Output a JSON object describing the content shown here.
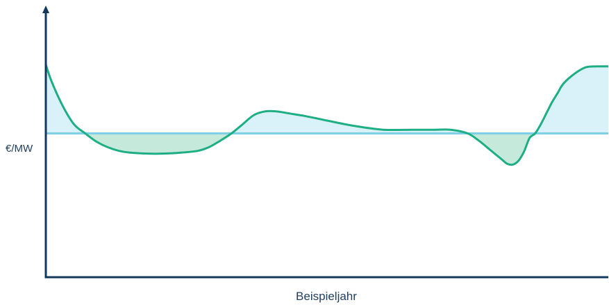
{
  "chart_data": {
    "type": "area",
    "title": "",
    "xlabel": "Beispieljahr",
    "ylabel": "€/MW",
    "xlim": [
      0,
      100
    ],
    "ylim": [
      -100,
      100
    ],
    "reference_value": 0,
    "grid": false,
    "legend": "none",
    "series": [
      {
        "x": [
          0,
          1,
          3,
          5,
          7,
          9,
          11,
          13,
          15,
          18,
          21,
          24,
          27,
          29,
          31,
          33,
          35,
          37,
          39,
          41,
          43,
          46,
          50,
          55,
          60,
          65,
          69,
          72,
          75,
          77,
          79,
          81,
          82,
          83,
          84,
          85,
          86,
          87,
          88,
          89,
          90,
          91,
          92,
          94,
          96,
          98,
          100
        ],
        "y": [
          75,
          57,
          30,
          10,
          0,
          -9,
          -15,
          -19,
          -21,
          -22,
          -22,
          -21,
          -19,
          -15,
          -8,
          0,
          10,
          20,
          24,
          24,
          22,
          19,
          14,
          8,
          4,
          4,
          4,
          4,
          0,
          -8,
          -18,
          -28,
          -33,
          -34,
          -30,
          -20,
          -5,
          0,
          10,
          22,
          34,
          44,
          54,
          65,
          72,
          73,
          73
        ]
      }
    ],
    "colors": {
      "axis": "#12385c",
      "curve": "#1dae84",
      "reference_line": "#7fd0e6",
      "fill_above": "#d9f1f8",
      "fill_below": "#c5eadb"
    }
  }
}
